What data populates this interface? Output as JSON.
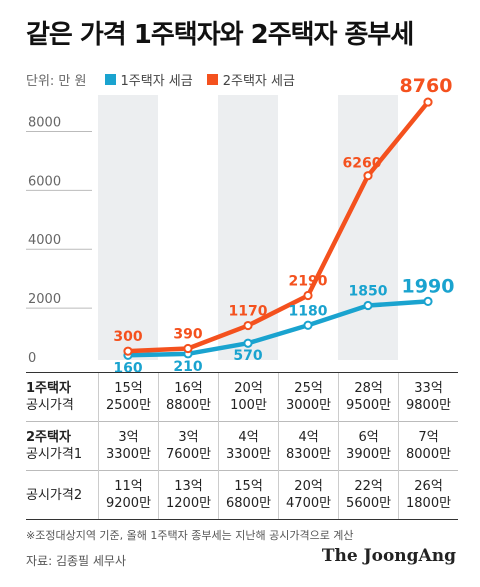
{
  "title": "같은 가격 1주택자와 2주택자 종부세",
  "legend": {
    "unit": "단위: 만 원",
    "items": [
      {
        "label": "1주택자 세금",
        "color": "#1aa3cf"
      },
      {
        "label": "2주택자 세금",
        "color": "#f4511e"
      }
    ]
  },
  "chart_data": {
    "type": "line",
    "x": [
      "1",
      "2",
      "3",
      "4",
      "5",
      "6"
    ],
    "ylim": [
      0,
      9000
    ],
    "yticks": [
      "0",
      "2000",
      "4000",
      "6000",
      "8000"
    ],
    "grid": false,
    "legend_placement": "top-left",
    "series": [
      {
        "name": "1주택자 세금",
        "color": "#1aa3cf",
        "values": [
          160,
          210,
          570,
          1180,
          1850,
          1990
        ],
        "labels": [
          "160",
          "210",
          "570",
          "1180",
          "1850",
          "1990"
        ]
      },
      {
        "name": "2주택자 세금",
        "color": "#f4511e",
        "values": [
          300,
          390,
          1170,
          2190,
          6260,
          8760
        ],
        "labels": [
          "300",
          "390",
          "1170",
          "2190",
          "6260",
          "8760"
        ]
      }
    ]
  },
  "table": {
    "rows": [
      {
        "header_bold": "1주택자",
        "header": "공시가격",
        "cells": [
          "15억\n2500만",
          "16억\n8800만",
          "20억\n100만",
          "25억\n3000만",
          "28억\n9500만",
          "33억\n9800만"
        ]
      },
      {
        "header_bold": "2주택자",
        "header": "공시가격1",
        "cells": [
          "3억\n3300만",
          "3억\n7600만",
          "4억\n3300만",
          "4억\n8300만",
          "6억\n3900만",
          "7억\n8000만"
        ]
      },
      {
        "header_bold": "",
        "header": "공시가격2",
        "cells": [
          "11억\n9200만",
          "13억\n1200만",
          "15억\n6800만",
          "20억\n4700만",
          "22억\n5600만",
          "26억\n1800만"
        ]
      }
    ]
  },
  "note": "※조정대상지역 기준, 올해 1주택자 종부세는 지난해 공시가격으로 계산",
  "source": "자료: 김종필 세무사",
  "brand": "The JoongAng"
}
